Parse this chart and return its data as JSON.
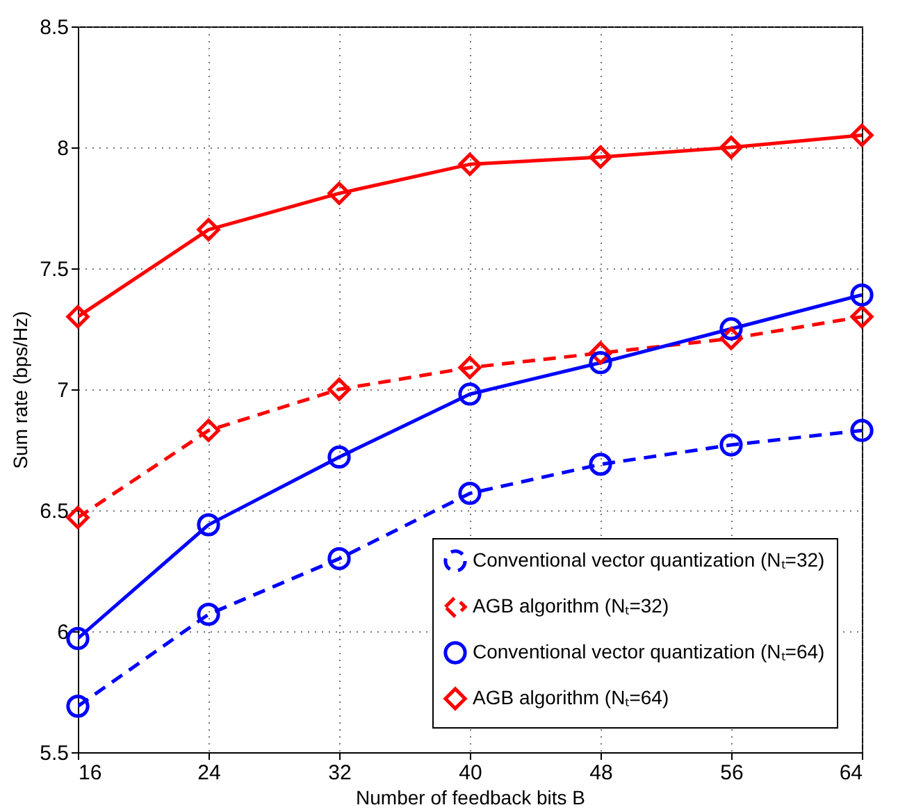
{
  "chart_data": {
    "type": "line",
    "xlabel": "Number of feedback bits B",
    "ylabel": "Sum rate (bps/Hz)",
    "x": [
      16,
      24,
      32,
      40,
      48,
      56,
      64
    ],
    "series": [
      {
        "name": "Conventional vector quantization (Nₜ=32)",
        "color": "#0000ff",
        "marker": "circle",
        "line_style": "dashed",
        "values": [
          5.69,
          6.07,
          6.3,
          6.57,
          6.69,
          6.77,
          6.83
        ]
      },
      {
        "name": "AGB algorithm (Nₜ=32)",
        "color": "#ff0000",
        "marker": "diamond",
        "line_style": "dashed",
        "values": [
          6.47,
          6.83,
          7.0,
          7.09,
          7.15,
          7.21,
          7.3
        ]
      },
      {
        "name": "Conventional vector quantization (Nₜ=64)",
        "color": "#0000ff",
        "marker": "circle",
        "line_style": "solid",
        "values": [
          5.97,
          6.44,
          6.72,
          6.98,
          7.11,
          7.25,
          7.39
        ]
      },
      {
        "name": "AGB algorithm (Nₜ=64)",
        "color": "#ff0000",
        "marker": "diamond",
        "line_style": "solid",
        "values": [
          7.3,
          7.66,
          7.81,
          7.93,
          7.96,
          8.0,
          8.05
        ]
      }
    ],
    "xlim": [
      16,
      64
    ],
    "xticks": [
      16,
      24,
      32,
      40,
      48,
      56,
      64
    ],
    "ylim": [
      5.5,
      8.5
    ],
    "yticks": [
      5.5,
      6,
      6.5,
      7,
      7.5,
      8,
      8.5
    ],
    "grid": true,
    "legend": "bottom right"
  }
}
